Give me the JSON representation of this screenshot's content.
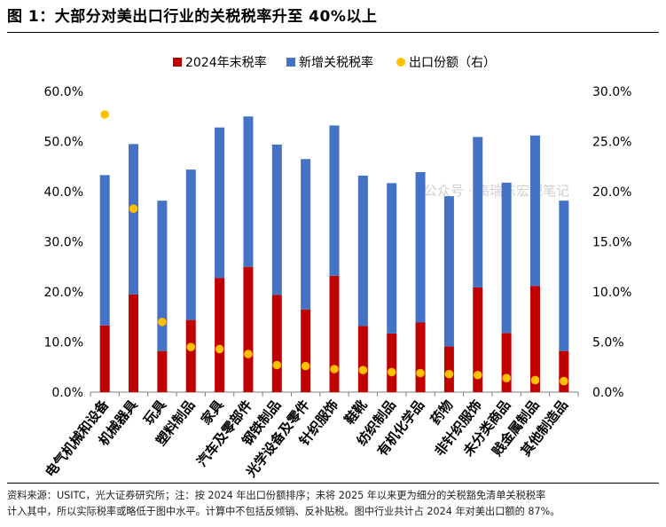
{
  "page": {
    "title": "图 1：大部分对美出口行业的关税税率升至 40%以上",
    "note_line1": "资料来源：USITC，光大证券研究所；注：按 2024 年出口份额排序；未将 2025 年以来更为细分的关税豁免清单关税税率",
    "note_line2": "计入其中，所以实际税率或略低于图中水平。计算中不包括反倾销、反补贴税。图中行业共计占 2024 年对美出口额的 87%。",
    "watermark": "公众号 · 高瑞东宏观笔记"
  },
  "chart_data": {
    "type": "bar",
    "stacked": true,
    "categories": [
      "电气机械和设备",
      "机械器具",
      "玩具",
      "塑料制品",
      "家具",
      "汽车及零部件",
      "钢铁制品",
      "光学设备及零件",
      "针织服饰",
      "鞋靴",
      "纺织制品",
      "有机化学品",
      "药物",
      "非针织服饰",
      "未分类商品",
      "贱金属制品",
      "其他制造品"
    ],
    "series": [
      {
        "name": "2024年末税率",
        "axis": "left",
        "color": "#c00000",
        "values": [
          13.3,
          19.5,
          8.2,
          14.4,
          22.8,
          25.0,
          19.4,
          16.5,
          23.2,
          13.2,
          11.7,
          13.9,
          9.1,
          20.9,
          11.8,
          21.2,
          8.2
        ]
      },
      {
        "name": "新增关税税率",
        "axis": "left",
        "color": "#4472c4",
        "values": [
          30.0,
          30.0,
          30.0,
          30.0,
          30.0,
          30.0,
          30.0,
          30.0,
          30.0,
          30.0,
          30.0,
          30.0,
          30.0,
          30.0,
          30.0,
          30.0,
          30.0
        ]
      },
      {
        "name": "出口份额（右）",
        "axis": "right",
        "type": "scatter",
        "color": "#ffc000",
        "values": [
          27.7,
          18.3,
          7.0,
          4.5,
          4.3,
          3.8,
          2.7,
          2.6,
          2.3,
          2.2,
          2.0,
          1.9,
          1.8,
          1.7,
          1.4,
          1.2,
          1.1
        ]
      }
    ],
    "y_left": {
      "ylim": [
        0,
        60
      ],
      "ticks": [
        "0.0%",
        "10.0%",
        "20.0%",
        "30.0%",
        "40.0%",
        "50.0%",
        "60.0%"
      ]
    },
    "y_right": {
      "ylim": [
        0,
        30
      ],
      "ticks": [
        "0.0%",
        "5.0%",
        "10.0%",
        "15.0%",
        "20.0%",
        "25.0%",
        "30.0%"
      ]
    },
    "legend_position": "top",
    "grid": false
  }
}
